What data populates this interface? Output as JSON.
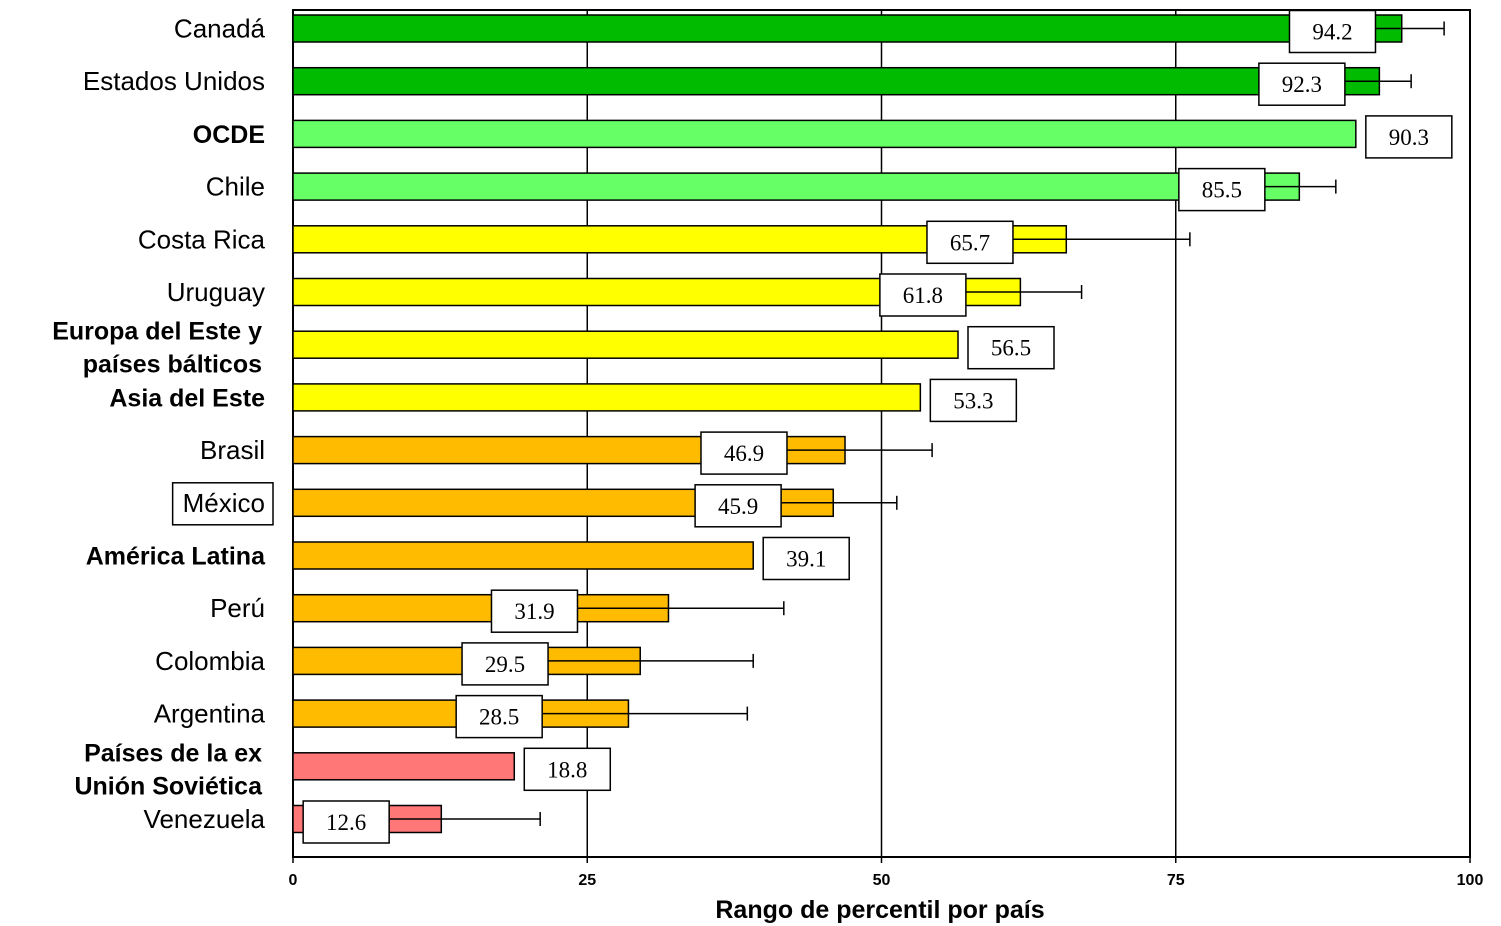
{
  "chart_data": {
    "type": "bar",
    "orientation": "horizontal",
    "xlabel": "Rango de percentil por país",
    "xlim": [
      0,
      100
    ],
    "xticks": [
      0,
      25,
      50,
      75,
      100
    ],
    "grid": "vertical",
    "colors": {
      "dark_green": "#00bb00",
      "light_green": "#66ff66",
      "yellow": "#ffff00",
      "orange": "#ffbb00",
      "red": "#ff7777"
    },
    "bars": [
      {
        "label": "Canadá",
        "value": 94.2,
        "value_label": "94.2",
        "err_low": 91.8,
        "err_high": 97.8,
        "color": "#00bb00",
        "bold": false,
        "boxed": false
      },
      {
        "label": "Estados Unidos",
        "value": 92.3,
        "value_label": "92.3",
        "err_low": 89.2,
        "err_high": 95.0,
        "color": "#00bb00",
        "bold": false,
        "boxed": false
      },
      {
        "label": "OCDE",
        "value": 90.3,
        "value_label": "90.3",
        "err_low": null,
        "err_high": null,
        "color": "#66ff66",
        "bold": true,
        "boxed": false
      },
      {
        "label": "Chile",
        "value": 85.5,
        "value_label": "85.5",
        "err_low": 82.4,
        "err_high": 88.6,
        "color": "#66ff66",
        "bold": false,
        "boxed": false
      },
      {
        "label": "Costa Rica",
        "value": 65.7,
        "value_label": "65.7",
        "err_low": 61.0,
        "err_high": 76.2,
        "color": "#ffff00",
        "bold": false,
        "boxed": false
      },
      {
        "label": "Uruguay",
        "value": 61.8,
        "value_label": "61.8",
        "err_low": 57.0,
        "err_high": 67.0,
        "color": "#ffff00",
        "bold": false,
        "boxed": false
      },
      {
        "label": "Europa del Este y\npaíses bálticos",
        "value": 56.5,
        "value_label": "56.5",
        "err_low": null,
        "err_high": null,
        "color": "#ffff00",
        "bold": true,
        "boxed": false
      },
      {
        "label": "Asia del Este",
        "value": 53.3,
        "value_label": "53.3",
        "err_low": null,
        "err_high": null,
        "color": "#ffff00",
        "bold": true,
        "boxed": false
      },
      {
        "label": "Brasil",
        "value": 46.9,
        "value_label": "46.9",
        "err_low": 41.8,
        "err_high": 54.3,
        "color": "#ffbb00",
        "bold": false,
        "boxed": false
      },
      {
        "label": "México",
        "value": 45.9,
        "value_label": "45.9",
        "err_low": 41.3,
        "err_high": 51.3,
        "color": "#ffbb00",
        "bold": false,
        "boxed": true
      },
      {
        "label": "América Latina",
        "value": 39.1,
        "value_label": "39.1",
        "err_low": null,
        "err_high": null,
        "color": "#ffbb00",
        "bold": true,
        "boxed": false
      },
      {
        "label": "Perú",
        "value": 31.9,
        "value_label": "31.9",
        "err_low": 24.0,
        "err_high": 41.7,
        "color": "#ffbb00",
        "bold": false,
        "boxed": false
      },
      {
        "label": "Colombia",
        "value": 29.5,
        "value_label": "29.5",
        "err_low": 21.5,
        "err_high": 39.1,
        "color": "#ffbb00",
        "bold": false,
        "boxed": false
      },
      {
        "label": "Argentina",
        "value": 28.5,
        "value_label": "28.5",
        "err_low": 21.0,
        "err_high": 38.6,
        "color": "#ffbb00",
        "bold": false,
        "boxed": false
      },
      {
        "label": "Países de la ex\nUnión Soviética",
        "value": 18.8,
        "value_label": "18.8",
        "err_low": null,
        "err_high": null,
        "color": "#ff7777",
        "bold": true,
        "boxed": false
      },
      {
        "label": "Venezuela",
        "value": 12.6,
        "value_label": "12.6",
        "err_low": 8.0,
        "err_high": 21.0,
        "color": "#ff7777",
        "bold": false,
        "boxed": false
      }
    ]
  }
}
